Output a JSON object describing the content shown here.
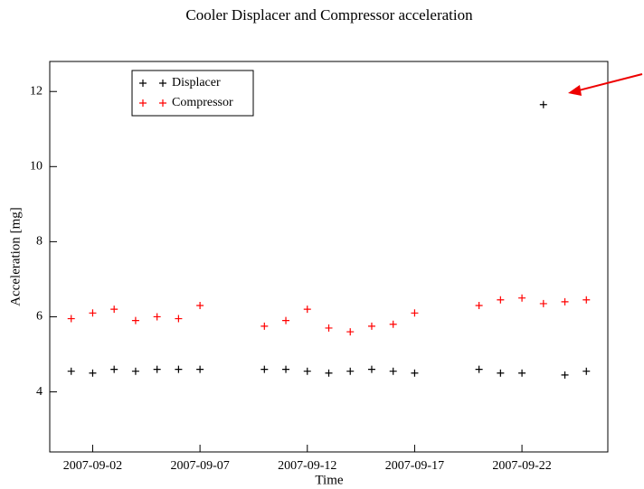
{
  "chart_data": {
    "type": "scatter",
    "title": "Cooler Displacer and Compressor acceleration",
    "x_label": "Time",
    "y_label": "Acceleration [mg]",
    "x": [
      "2007-09-01",
      "2007-09-02",
      "2007-09-03",
      "2007-09-04",
      "2007-09-05",
      "2007-09-06",
      "2007-09-07",
      "2007-09-10",
      "2007-09-11",
      "2007-09-12",
      "2007-09-13",
      "2007-09-14",
      "2007-09-15",
      "2007-09-16",
      "2007-09-17",
      "2007-09-20",
      "2007-09-21",
      "2007-09-22",
      "2007-09-23",
      "2007-09-24",
      "2007-09-25"
    ],
    "series": [
      {
        "name": "Displacer",
        "color": "#000000",
        "values": [
          4.55,
          4.5,
          4.6,
          4.55,
          4.6,
          4.6,
          4.6,
          4.6,
          4.6,
          4.55,
          4.5,
          4.55,
          4.6,
          4.55,
          4.5,
          4.6,
          4.5,
          4.5,
          11.65,
          4.45,
          4.55
        ]
      },
      {
        "name": "Compressor",
        "color": "#ff0000",
        "values": [
          5.95,
          6.1,
          6.2,
          5.9,
          6.0,
          5.95,
          6.3,
          5.75,
          5.9,
          6.2,
          5.7,
          5.6,
          5.75,
          5.8,
          6.1,
          6.3,
          6.45,
          6.5,
          6.35,
          6.4,
          6.45
        ]
      }
    ],
    "xlim": [
      "2007-08-31",
      "2007-09-26"
    ],
    "xticks": [
      "2007-09-02",
      "2007-09-07",
      "2007-09-12",
      "2007-09-17",
      "2007-09-22"
    ],
    "ylim": [
      2.4,
      12.8
    ],
    "yticks": [
      4,
      6,
      8,
      10,
      12
    ],
    "legend": "upper left"
  }
}
